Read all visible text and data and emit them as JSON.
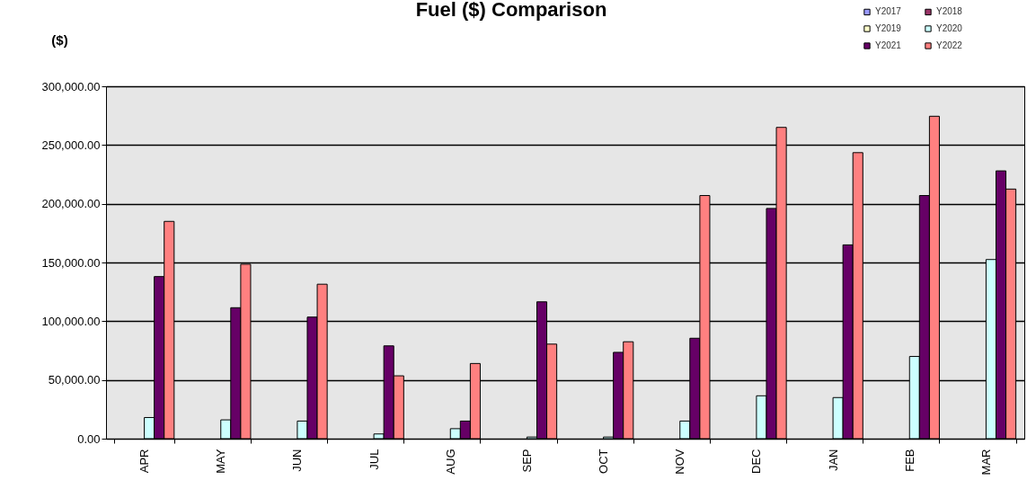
{
  "chart_data": {
    "type": "bar",
    "title": "Fuel ($) Comparison",
    "ylabel": "($)",
    "categories": [
      "APR",
      "MAY",
      "JUN",
      "JUL",
      "AUG",
      "SEP",
      "OCT",
      "NOV",
      "DEC",
      "JAN",
      "FEB",
      "MAR"
    ],
    "series": [
      {
        "name": "Y2017",
        "color": "#9999ff",
        "values": [
          null,
          null,
          null,
          null,
          null,
          null,
          null,
          null,
          null,
          null,
          null,
          null
        ]
      },
      {
        "name": "Y2018",
        "color": "#993366",
        "values": [
          null,
          null,
          null,
          null,
          null,
          null,
          null,
          null,
          null,
          null,
          null,
          null
        ]
      },
      {
        "name": "Y2019",
        "color": "#ffffcc",
        "values": [
          null,
          null,
          null,
          null,
          null,
          null,
          null,
          null,
          null,
          null,
          null,
          null
        ]
      },
      {
        "name": "Y2020",
        "color": "#ccffff",
        "values": [
          18000,
          16000,
          15000,
          4000,
          8500,
          1400,
          1400,
          15000,
          36500,
          35000,
          70000,
          152500
        ]
      },
      {
        "name": "Y2021",
        "color": "#660066",
        "values": [
          138000,
          111500,
          103500,
          79000,
          15000,
          116500,
          73500,
          85500,
          196000,
          165000,
          207000,
          228000
        ]
      },
      {
        "name": "Y2022",
        "color": "#ff8080",
        "values": [
          185000,
          148500,
          131500,
          53500,
          64000,
          80500,
          82500,
          207000,
          265000,
          243500,
          274500,
          212500
        ]
      }
    ],
    "ylim": [
      0,
      300000
    ],
    "yticks": [
      {
        "value": 0,
        "label": "0.00"
      },
      {
        "value": 50000,
        "label": "50,000.00"
      },
      {
        "value": 100000,
        "label": "100,000.00"
      },
      {
        "value": 150000,
        "label": "150,000.00"
      },
      {
        "value": 200000,
        "label": "200,000.00"
      },
      {
        "value": 250000,
        "label": "250,000.00"
      },
      {
        "value": 300000,
        "label": "300,000.00"
      }
    ],
    "grid": "y",
    "legend": "top right"
  }
}
